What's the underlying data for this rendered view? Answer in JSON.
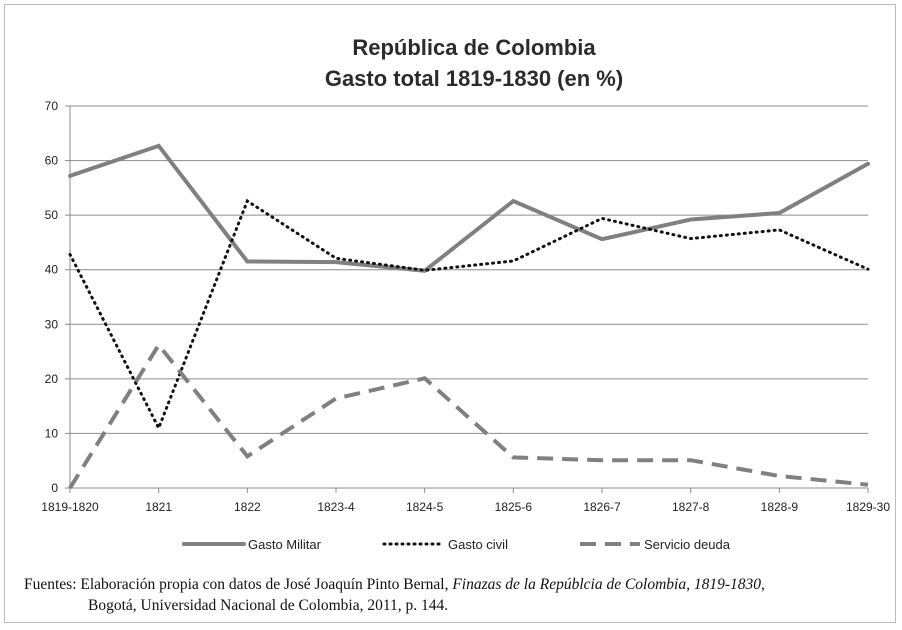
{
  "chart_data": {
    "type": "line",
    "title": [
      "República de Colombia",
      "Gasto total 1819-1830 (en %)"
    ],
    "categories": [
      "1819-1820",
      "1821",
      "1822",
      "1823-4",
      "1824-5",
      "1825-6",
      "1826-7",
      "1827-8",
      "1828-9",
      "1829-30"
    ],
    "ylim": [
      0,
      70
    ],
    "yticks": [
      0,
      10,
      20,
      30,
      40,
      50,
      60,
      70
    ],
    "grid": true,
    "legend_position": "bottom",
    "series": [
      {
        "name": "Gasto Militar",
        "style": "solid",
        "color": "#808080",
        "values": [
          57.2,
          62.7,
          41.5,
          41.4,
          39.8,
          52.6,
          45.6,
          49.2,
          50.4,
          59.4
        ]
      },
      {
        "name": "Gasto civil",
        "style": "dotted",
        "color": "#111111",
        "values": [
          42.8,
          11.0,
          52.6,
          42.1,
          39.9,
          41.6,
          49.4,
          45.7,
          47.3,
          40.1
        ]
      },
      {
        "name": "Servicio deuda",
        "style": "dashed",
        "color": "#808080",
        "values": [
          0.0,
          26.2,
          5.8,
          16.4,
          20.1,
          5.6,
          5.1,
          5.1,
          2.2,
          0.6
        ]
      }
    ]
  },
  "source": {
    "line1_prefix": "Fuentes: Elaboración propia con datos de José Joaquín Pinto Bernal, ",
    "line1_italic": "Finazas de la Repúblcia de Colombia, 1819-1830",
    "line1_suffix": ",",
    "line2": "Bogotá, Universidad Nacional de Colombia, 2011, p. 144."
  }
}
